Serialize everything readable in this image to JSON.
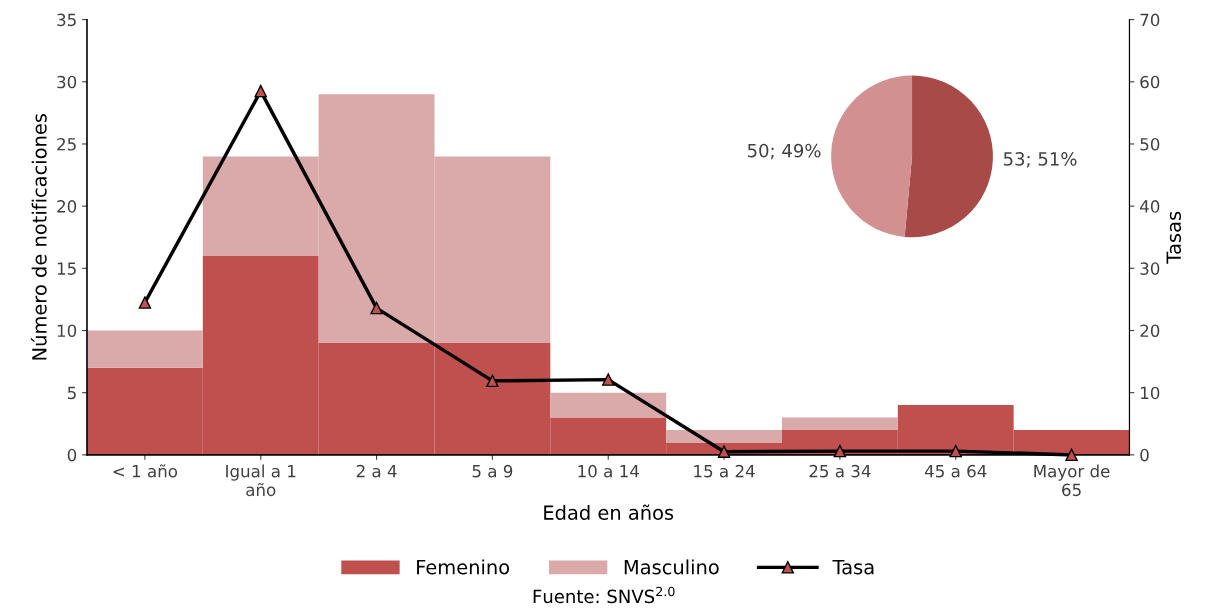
{
  "chart_data": [
    {
      "type": "bar",
      "stacked": true,
      "xlabel": "Edad en años",
      "ylabel": "Número de notificaciones",
      "y2label": "Tasas",
      "categories": [
        "< 1 año",
        "Igual a 1\naño",
        "2 a 4",
        "5 a 9",
        "10 a 14",
        "15 a 24",
        "25 a 34",
        "45 a 64",
        "Mayor de\n65"
      ],
      "series": [
        {
          "name": "Femenino",
          "color": "#c0504d",
          "values": [
            7,
            16,
            9,
            9,
            3,
            1,
            2,
            4,
            2
          ]
        },
        {
          "name": "Masculino",
          "color": "#d9aaa9",
          "values": [
            3,
            8,
            20,
            15,
            2,
            1,
            1,
            0,
            0
          ]
        },
        {
          "name": "Tasa",
          "type": "line",
          "axis": "y2",
          "color": "#000000",
          "marker": "triangle",
          "values": [
            24.5,
            58.5,
            23.6,
            11.9,
            12.1,
            0.5,
            0.6,
            0.6,
            0
          ]
        }
      ],
      "ylim": [
        0,
        35
      ],
      "yticks": [
        0,
        5,
        10,
        15,
        20,
        25,
        30,
        35
      ],
      "y2lim": [
        0,
        70
      ],
      "y2ticks": [
        0,
        10,
        20,
        30,
        40,
        50,
        60,
        70
      ],
      "grid": false,
      "legend": "bottom",
      "annotations": [
        "Fuente: SNVS$^{2.0}$"
      ]
    },
    {
      "type": "pie",
      "categories": [
        null,
        null
      ],
      "values": [
        53,
        50
      ],
      "colors": [
        "#a84a47",
        "#d29190"
      ],
      "value_labels": [
        "53; 51%",
        "50; 49%"
      ]
    }
  ]
}
